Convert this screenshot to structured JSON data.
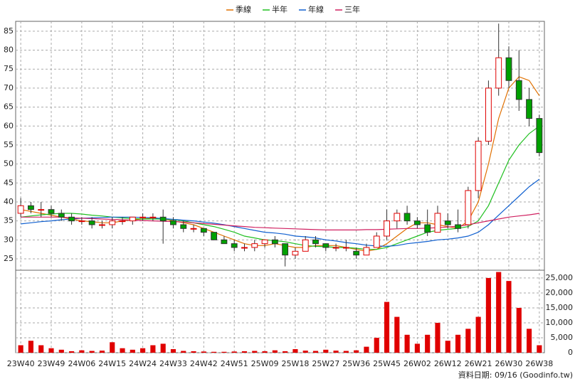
{
  "chart_data": {
    "type": "candlestick",
    "categories": [
      "23W40",
      null,
      null,
      "23W49",
      null,
      null,
      "24W06",
      null,
      null,
      "24W15",
      null,
      null,
      "24W24",
      null,
      null,
      "24W33",
      null,
      null,
      "24W42",
      null,
      null,
      "24W51",
      null,
      null,
      "25W09",
      null,
      null,
      "25W18",
      null,
      null,
      "25W27",
      null,
      null,
      "25W36",
      null,
      null,
      "25W45",
      null,
      null,
      "26W02",
      null,
      null,
      "26W12",
      null,
      null,
      "26W21",
      null,
      null,
      "26W30",
      null,
      null,
      "26W38"
    ],
    "open": [
      37,
      39,
      38,
      38,
      37,
      36,
      35,
      35,
      34,
      34,
      35,
      35,
      36,
      36,
      36,
      35,
      34,
      33,
      33,
      32,
      30,
      29,
      28,
      28,
      29,
      30,
      29,
      26,
      27,
      30,
      29,
      28,
      28,
      27,
      26,
      28,
      31,
      35,
      37,
      35,
      34,
      32,
      35,
      34,
      34,
      43,
      56,
      70,
      78,
      72,
      67,
      62
    ],
    "high": [
      41,
      40,
      40,
      39,
      38,
      37,
      36,
      36,
      35,
      36,
      36,
      36,
      37,
      37,
      38,
      36,
      35,
      34,
      33,
      32,
      31,
      30,
      29,
      30,
      30,
      31,
      29,
      28,
      31,
      31,
      29,
      29,
      30,
      28,
      29,
      32,
      38,
      38,
      39,
      36,
      38,
      39,
      37,
      38,
      44,
      57,
      72,
      87,
      81,
      80,
      70,
      63
    ],
    "low": [
      36,
      37,
      36,
      36,
      35,
      34,
      34,
      33,
      33,
      33,
      34,
      34,
      35,
      35,
      29,
      33,
      32,
      32,
      31,
      30,
      29,
      27,
      27,
      27,
      28,
      28,
      23,
      25,
      27,
      28,
      27,
      27,
      27,
      25,
      26,
      28,
      30,
      33,
      34,
      33,
      31,
      32,
      33,
      32,
      33,
      41,
      55,
      68,
      70,
      64,
      60,
      52
    ],
    "close": [
      39,
      38,
      38,
      37,
      36,
      35,
      35,
      34,
      34,
      35,
      35,
      36,
      36,
      36,
      35,
      34,
      33,
      33,
      32,
      30,
      29,
      28,
      28,
      29,
      30,
      29,
      26,
      27,
      30,
      29,
      28,
      28,
      28,
      26,
      28,
      31,
      35,
      37,
      35,
      34,
      32,
      37,
      34,
      33,
      43,
      56,
      70,
      78,
      72,
      67,
      62,
      53
    ],
    "up_color": "#e00000",
    "down_color": "#00a000",
    "ylim": [
      22,
      87.6
    ],
    "yticks": [
      25,
      30,
      35,
      40,
      45,
      50,
      55,
      60,
      65,
      70,
      75,
      80,
      85
    ],
    "grid": true,
    "series": [
      {
        "name": "季線",
        "color": "#e07000",
        "values": [
          38,
          37.5,
          37,
          36.5,
          36,
          35.5,
          35,
          34.8,
          34.5,
          34.5,
          35,
          35.3,
          35.5,
          35.8,
          35.5,
          35,
          34.5,
          34,
          33,
          32,
          31,
          30,
          29,
          28.5,
          28.5,
          29,
          28.5,
          28,
          28,
          28.5,
          28.5,
          28.5,
          28,
          27.5,
          27,
          27.5,
          29,
          31,
          33,
          34.5,
          34.5,
          34,
          33.5,
          33,
          35,
          40,
          50,
          62,
          70,
          73,
          72,
          68
        ]
      },
      {
        "name": "半年",
        "color": "#20c020",
        "values": [
          36,
          36.3,
          36.6,
          36.8,
          37,
          37,
          36.8,
          36.5,
          36.3,
          36,
          35.8,
          35.6,
          35.5,
          35.5,
          35.5,
          35.3,
          35,
          34.5,
          34,
          33.5,
          32.8,
          32,
          31,
          30.5,
          30,
          29.8,
          29.5,
          29,
          28.5,
          28.3,
          28.2,
          28,
          28,
          27.8,
          27.5,
          27.5,
          28,
          29,
          30,
          31,
          32,
          32.5,
          32.8,
          33,
          33.5,
          35,
          39,
          45,
          51,
          55,
          58,
          60
        ]
      },
      {
        "name": "年線",
        "color": "#1060d0",
        "values": [
          34.2,
          34.5,
          34.8,
          35,
          35.3,
          35.5,
          35.7,
          35.8,
          35.9,
          36,
          36,
          36,
          35.9,
          35.8,
          35.6,
          35.4,
          35.2,
          35,
          34.7,
          34.4,
          34,
          33.5,
          33,
          32.5,
          32,
          31.8,
          31.5,
          31,
          30.8,
          30.5,
          30,
          29.7,
          29.3,
          29,
          28.6,
          28.4,
          28.3,
          28.5,
          29,
          29.3,
          29.6,
          30,
          30.2,
          30.5,
          31,
          32,
          34,
          36.5,
          39,
          41.5,
          44,
          46
        ]
      },
      {
        "name": "三年",
        "color": "#d02060",
        "values": [
          36,
          36,
          36,
          36,
          36,
          35.8,
          35.7,
          35.6,
          35.5,
          35.4,
          35.3,
          35.2,
          35.1,
          35,
          34.9,
          34.8,
          34.7,
          34.5,
          34.3,
          34.1,
          33.9,
          33.7,
          33.5,
          33.3,
          33.2,
          33.1,
          33,
          32.9,
          32.8,
          32.7,
          32.6,
          32.6,
          32.6,
          32.6,
          32.7,
          32.7,
          32.8,
          32.9,
          33,
          33,
          33.1,
          33.2,
          33.4,
          33.6,
          34,
          34.5,
          35,
          35.5,
          36,
          36.3,
          36.6,
          37
        ]
      }
    ],
    "volume": {
      "color": "#e00000",
      "values": [
        2500,
        4000,
        2500,
        1500,
        1000,
        500,
        800,
        600,
        700,
        3500,
        1500,
        1000,
        1500,
        2500,
        3000,
        1200,
        600,
        500,
        400,
        300,
        300,
        400,
        500,
        600,
        500,
        800,
        500,
        1200,
        700,
        600,
        1000,
        700,
        600,
        800,
        2000,
        5000,
        17000,
        12000,
        6000,
        3000,
        6000,
        10000,
        4000,
        6000,
        8000,
        12000,
        25000,
        27000,
        24000,
        15000,
        8000,
        2500
      ],
      "ylim": [
        0,
        27600
      ],
      "yticks": [
        0,
        {
          "value": 5000,
          "label": "5,000"
        },
        {
          "value": 10000,
          "label": "10,000"
        },
        {
          "value": 15000,
          "label": "15,000"
        },
        {
          "value": 20000,
          "label": "20,000"
        },
        {
          "value": 25000,
          "label": "25,000"
        }
      ]
    },
    "source": "資料日期: 09/16 (Goodinfo.tw)"
  }
}
